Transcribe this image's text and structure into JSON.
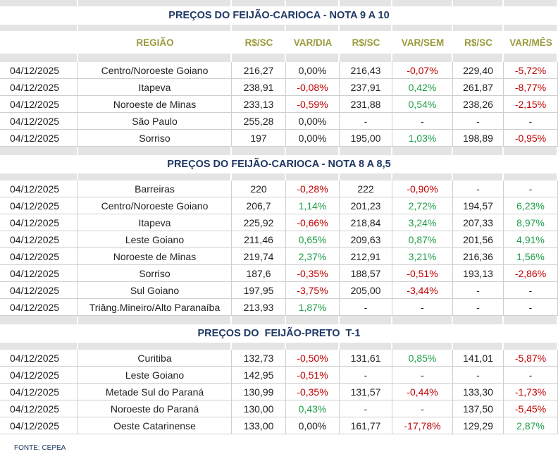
{
  "table": {
    "header": [
      "REGIÃO",
      "R$/SC",
      "VAR/DIA",
      "R$/SC",
      "VAR/SEM",
      "R$/SC",
      "VAR/MÊS"
    ],
    "sections": [
      {
        "title": "PREÇOS DO FEIJÃO-CARIOCA - NOTA 9 A 10",
        "rows": [
          [
            "04/12/2025",
            "Centro/Noroeste Goiano",
            "216,27",
            "0,00%",
            "216,43",
            "-0,07%",
            "229,40",
            "-5,72%"
          ],
          [
            "04/12/2025",
            "Itapeva",
            "238,91",
            "-0,08%",
            "237,91",
            "0,42%",
            "261,87",
            "-8,77%"
          ],
          [
            "04/12/2025",
            "Noroeste de Minas",
            "233,13",
            "-0,59%",
            "231,88",
            "0,54%",
            "238,26",
            "-2,15%"
          ],
          [
            "04/12/2025",
            "São Paulo",
            "255,28",
            "0,00%",
            "-",
            "-",
            "-",
            "-"
          ],
          [
            "04/12/2025",
            "Sorriso",
            "197",
            "0,00%",
            "195,00",
            "1,03%",
            "198,89",
            "-0,95%"
          ]
        ]
      },
      {
        "title": "PREÇOS DO FEIJÃO-CARIOCA - NOTA 8 A 8,5",
        "rows": [
          [
            "04/12/2025",
            "Barreiras",
            "220",
            "-0,28%",
            "222",
            "-0,90%",
            "-",
            "-"
          ],
          [
            "04/12/2025",
            "Centro/Noroeste Goiano",
            "206,7",
            "1,14%",
            "201,23",
            "2,72%",
            "194,57",
            "6,23%"
          ],
          [
            "04/12/2025",
            "Itapeva",
            "225,92",
            "-0,66%",
            "218,84",
            "3,24%",
            "207,33",
            "8,97%"
          ],
          [
            "04/12/2025",
            "Leste Goiano",
            "211,46",
            "0,65%",
            "209,63",
            "0,87%",
            "201,56",
            "4,91%"
          ],
          [
            "04/12/2025",
            "Noroeste de Minas",
            "219,74",
            "2,37%",
            "212,91",
            "3,21%",
            "216,36",
            "1,56%"
          ],
          [
            "04/12/2025",
            "Sorriso",
            "187,6",
            "-0,35%",
            "188,57",
            "-0,51%",
            "193,13",
            "-2,86%"
          ],
          [
            "04/12/2025",
            "Sul Goiano",
            "197,95",
            "-3,75%",
            "205,00",
            "-3,44%",
            "-",
            "-"
          ],
          [
            "04/12/2025",
            "Triâng.Mineiro/Alto Paranaíba",
            "213,93",
            "1,87%",
            "-",
            "-",
            "-",
            "-"
          ]
        ]
      },
      {
        "title": "PREÇOS DO  FEIJÃO-PRETO  T-1",
        "rows": [
          [
            "04/12/2025",
            "Curitiba",
            "132,73",
            "-0,50%",
            "131,61",
            "0,85%",
            "141,01",
            "-5,87%"
          ],
          [
            "04/12/2025",
            "Leste Goiano",
            "142,95",
            "-0,51%",
            "-",
            "-",
            "-",
            "-"
          ],
          [
            "04/12/2025",
            "Metade Sul do Paraná",
            "130,99",
            "-0,35%",
            "131,57",
            "-0,44%",
            "133,30",
            "-1,73%"
          ],
          [
            "04/12/2025",
            "Noroeste do Paraná",
            "130,00",
            "0,43%",
            "-",
            "-",
            "137,50",
            "-5,45%"
          ],
          [
            "04/12/2025",
            "Oeste Catarinense",
            "133,00",
            "0,00%",
            "161,77",
            "-17,78%",
            "129,29",
            "2,87%"
          ]
        ]
      }
    ],
    "footer": "FONTE: CEPEA"
  }
}
